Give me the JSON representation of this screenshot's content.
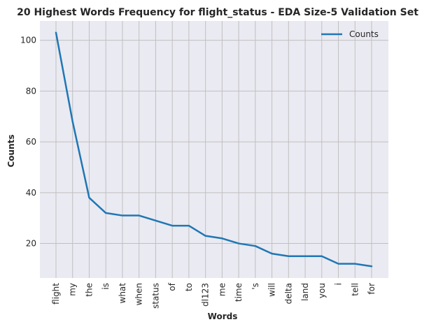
{
  "chart_data": {
    "type": "line",
    "title": "20 Highest Words Frequency for flight_status - EDA Size-5 Validation Set",
    "xlabel": "Words",
    "ylabel": "Counts",
    "categories": [
      "flight",
      "my",
      "the",
      "is",
      "what",
      "when",
      "status",
      "of",
      "to",
      "dl123",
      "me",
      "time",
      "'s",
      "will",
      "delta",
      "land",
      "you",
      "i",
      "tell",
      "for"
    ],
    "series": [
      {
        "name": "Counts",
        "color": "#1f77b4",
        "values": [
          103,
          68,
          38,
          32,
          31,
          31,
          29,
          27,
          27,
          23,
          22,
          20,
          19,
          16,
          15,
          15,
          15,
          12,
          12,
          11
        ]
      }
    ],
    "ylim": [
      6.4,
      107.6
    ],
    "yticks": [
      20,
      40,
      60,
      80,
      100
    ],
    "grid": true,
    "legend_position": "top-right",
    "background_color": "#eaeaf2",
    "grid_color": "#c0c0c0"
  }
}
